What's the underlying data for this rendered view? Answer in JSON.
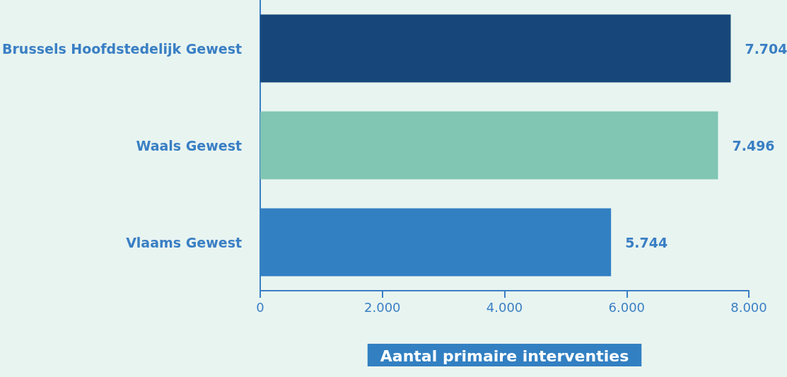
{
  "chart_data": {
    "type": "bar",
    "orientation": "horizontal",
    "xlabel": "Aantal primaire interventies",
    "categories": [
      "Brussels Hoofdstedelijk Gewest",
      "Waals Gewest",
      "Vlaams Gewest"
    ],
    "values": [
      7704,
      7496,
      5744
    ],
    "colors": [
      "#17477a",
      "#80c6b3",
      "#3280c2"
    ],
    "value_labels": [
      "7.704",
      "7.496",
      "5.744"
    ],
    "xlim": [
      0,
      8000
    ],
    "xticks": [
      0,
      {
        "value": 2000,
        "label": "2.000"
      },
      {
        "value": 4000,
        "label": "4.000"
      },
      {
        "value": 6000,
        "label": "6.000"
      },
      {
        "value": 8000,
        "label": "8.000"
      }
    ],
    "grid": false
  }
}
